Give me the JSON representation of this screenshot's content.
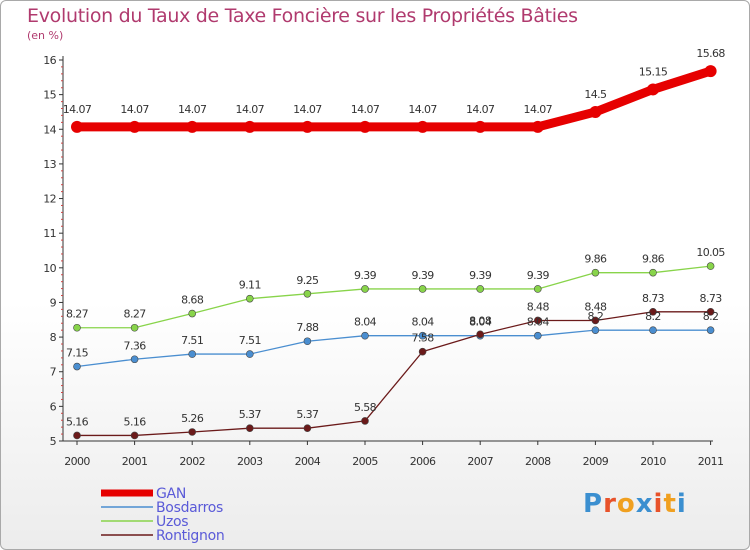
{
  "chart_data": {
    "type": "line",
    "title": "Evolution du Taux de Taxe Foncière sur les Propriétés Bâties",
    "unit_label": "(en %)",
    "x": [
      "2000",
      "2001",
      "2002",
      "2003",
      "2004",
      "2005",
      "2006",
      "2007",
      "2008",
      "2009",
      "2010",
      "2011"
    ],
    "ylim": [
      5,
      16
    ],
    "yticks": [
      "5",
      "6",
      "7",
      "8",
      "9",
      "10",
      "11",
      "12",
      "13",
      "14",
      "15",
      "16"
    ],
    "series": [
      {
        "name": "GAN",
        "color": "#e60000",
        "values": [
          14.07,
          14.07,
          14.07,
          14.07,
          14.07,
          14.07,
          14.07,
          14.07,
          14.07,
          14.5,
          15.15,
          15.68
        ],
        "labels": [
          "14.07",
          "14.07",
          "14.07",
          "14.07",
          "14.07",
          "14.07",
          "14.07",
          "14.07",
          "14.07",
          "14.5",
          "15.15",
          "15.68"
        ]
      },
      {
        "name": "Bosdarros",
        "color": "#4a8ed0",
        "values": [
          7.15,
          7.36,
          7.51,
          7.51,
          7.88,
          8.04,
          8.04,
          8.04,
          8.04,
          8.2,
          8.2,
          8.2
        ],
        "labels": [
          "7.15",
          "7.36",
          "7.51",
          "7.51",
          "7.88",
          "8.04",
          "8.04",
          "8.04",
          "8.04",
          "8.2",
          "8.2",
          "8.2"
        ]
      },
      {
        "name": "Uzos",
        "color": "#88d44a",
        "values": [
          8.27,
          8.27,
          8.68,
          9.11,
          9.25,
          9.39,
          9.39,
          9.39,
          9.39,
          9.86,
          9.86,
          10.05
        ],
        "labels": [
          "8.27",
          "8.27",
          "8.68",
          "9.11",
          "9.25",
          "9.39",
          "9.39",
          "9.39",
          "9.39",
          "9.86",
          "9.86",
          "10.05"
        ]
      },
      {
        "name": "Rontignon",
        "color": "#6b1a1a",
        "values": [
          5.16,
          5.16,
          5.26,
          5.37,
          5.37,
          5.58,
          7.58,
          8.08,
          8.48,
          8.48,
          8.73,
          8.73
        ],
        "labels": [
          "5.16",
          "5.16",
          "5.26",
          "5.37",
          "5.37",
          "5.58",
          "7.58",
          "8.08",
          "8.48",
          "8.48",
          "8.73",
          "8.73"
        ]
      }
    ],
    "legend": [
      "GAN",
      "Bosdarros",
      "Uzos",
      "Rontignon"
    ],
    "legend_position": "bottom-left",
    "grid": false
  },
  "logo": {
    "text": "Proxiti",
    "letters": [
      "P",
      "r",
      "o",
      "x",
      "i",
      "t",
      "i"
    ],
    "colors": [
      "#3b8fd0",
      "#e8522a",
      "#f0a020",
      "#3b8fd0",
      "#e8522a",
      "#f0a020",
      "#3b8fd0"
    ]
  }
}
